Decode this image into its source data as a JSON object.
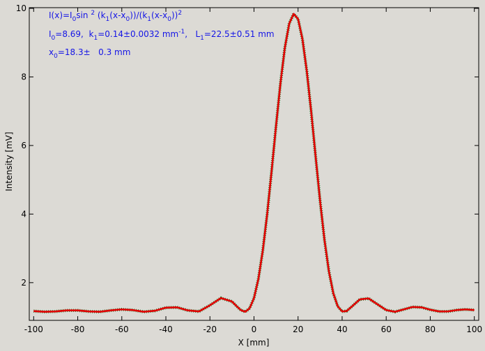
{
  "chart_data": {
    "type": "line",
    "xlabel": "X [mm]",
    "ylabel": "Intensity [mV]",
    "annotations": [
      [
        {
          "text": "I(x)=I"
        },
        {
          "text": "0",
          "shift": "sub"
        },
        {
          "text": "sin "
        },
        {
          "text": "2",
          "shift": "sup"
        },
        {
          "text": " (k"
        },
        {
          "text": "1",
          "shift": "sub"
        },
        {
          "text": "(x-x"
        },
        {
          "text": "0",
          "shift": "sub"
        },
        {
          "text": "))/(k"
        },
        {
          "text": "1",
          "shift": "sub"
        },
        {
          "text": "(x-x"
        },
        {
          "text": "0",
          "shift": "sub"
        },
        {
          "text": "))"
        },
        {
          "text": "2",
          "shift": "sup"
        }
      ],
      [
        {
          "text": "I"
        },
        {
          "text": "0",
          "shift": "sub"
        },
        {
          "text": "=8.69,  k"
        },
        {
          "text": "1",
          "shift": "sub"
        },
        {
          "text": "=0.14±0.0032 mm"
        },
        {
          "text": "-1",
          "shift": "sup"
        },
        {
          "text": ",   L"
        },
        {
          "text": "1",
          "shift": "sub"
        },
        {
          "text": "=22.5±0.51 mm"
        }
      ],
      [
        {
          "text": "x"
        },
        {
          "text": "0",
          "shift": "sub"
        },
        {
          "text": "=18.3±   0.3 mm"
        }
      ]
    ],
    "x": [
      -100,
      -95,
      -90,
      -85,
      -80,
      -75,
      -70,
      -65,
      -60,
      -55,
      -50,
      -45,
      -40,
      -35,
      -30,
      -25,
      -20,
      -15,
      -10,
      -8,
      -6,
      -4,
      -2,
      0,
      2,
      4,
      6,
      8,
      10,
      12,
      14,
      16,
      18,
      20,
      22,
      24,
      26,
      28,
      30,
      32,
      34,
      36,
      38,
      40,
      42,
      44,
      48,
      52,
      56,
      60,
      64,
      68,
      72,
      76,
      80,
      84,
      88,
      92,
      96,
      100
    ],
    "series": [
      {
        "color": "#e00000",
        "underlay_color": "#1f6b1f",
        "values": [
          1.17,
          1.15,
          1.16,
          1.19,
          1.19,
          1.16,
          1.15,
          1.19,
          1.22,
          1.2,
          1.15,
          1.18,
          1.27,
          1.28,
          1.19,
          1.16,
          1.34,
          1.55,
          1.45,
          1.32,
          1.2,
          1.15,
          1.25,
          1.55,
          2.11,
          2.94,
          4.01,
          5.26,
          6.57,
          7.81,
          8.85,
          9.56,
          9.84,
          9.69,
          9.1,
          8.15,
          6.96,
          5.66,
          4.38,
          3.24,
          2.33,
          1.69,
          1.31,
          1.16,
          1.17,
          1.28,
          1.51,
          1.54,
          1.37,
          1.2,
          1.15,
          1.22,
          1.29,
          1.28,
          1.21,
          1.16,
          1.16,
          1.2,
          1.22,
          1.2
        ]
      }
    ],
    "xlim": [
      -102,
      102
    ],
    "ylim": [
      0.9,
      10.02
    ],
    "xticks": [
      -100,
      -80,
      -60,
      -40,
      -20,
      0,
      20,
      40,
      60,
      80,
      100
    ],
    "yticks": [
      2,
      4,
      6,
      8,
      10
    ],
    "grid": false
  }
}
